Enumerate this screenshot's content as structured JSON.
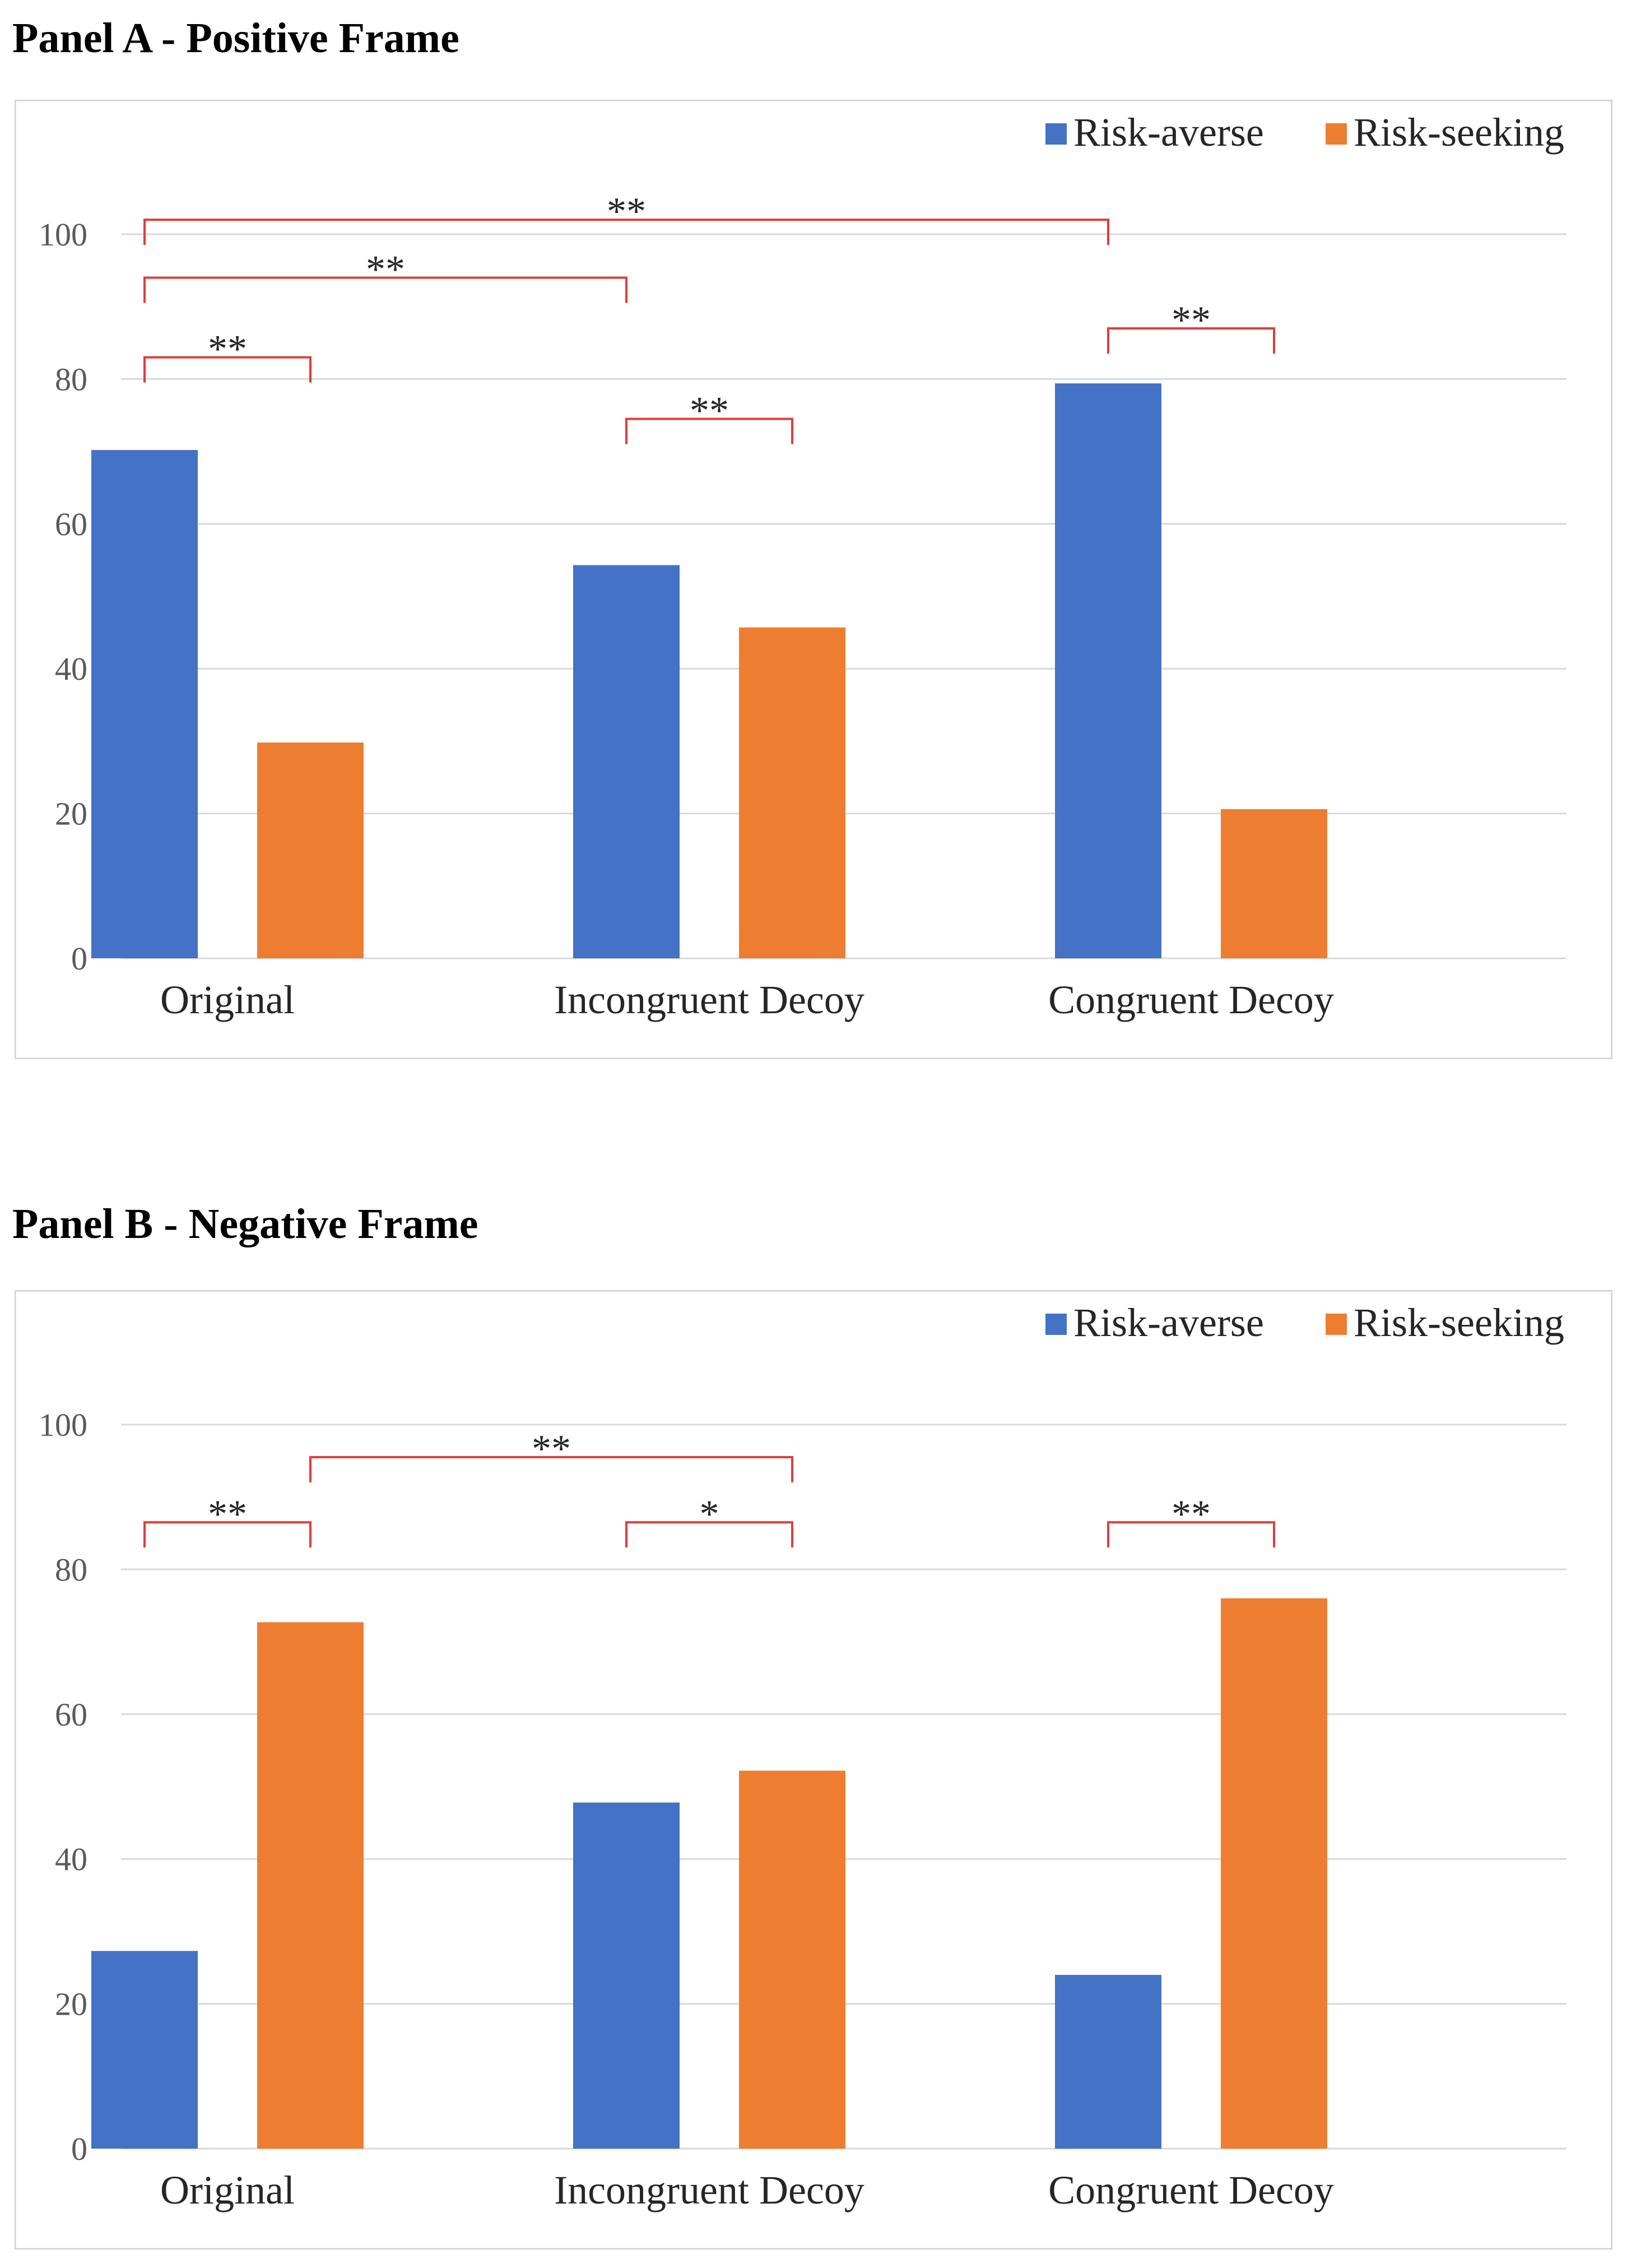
{
  "panels": [
    {
      "title": "Panel A - Positive Frame"
    },
    {
      "title": "Panel B - Negative Frame"
    }
  ],
  "colors": {
    "risk_averse": "#4472C4",
    "risk_seeking": "#ED7D31",
    "significance": "#E03C3C",
    "gridline": "#D9D9D9",
    "frame": "#D0D0D0",
    "text": "#262626"
  },
  "chart_data": [
    {
      "type": "bar",
      "categories": [
        "Original",
        "Incongruent Decoy",
        "Congruent Decoy"
      ],
      "series": [
        {
          "name": "Risk-averse",
          "values": [
            70.2,
            54.3,
            79.4
          ]
        },
        {
          "name": "Risk-seeking",
          "values": [
            29.8,
            45.7,
            20.6
          ]
        }
      ],
      "ylim": [
        0,
        100
      ],
      "yticks": [
        0,
        20,
        40,
        60,
        80,
        100
      ],
      "grid": true,
      "legend": "top-right",
      "significance": [
        {
          "from": [
            0,
            0
          ],
          "to": [
            0,
            1
          ],
          "level": 83,
          "label": "**"
        },
        {
          "from": [
            0,
            0
          ],
          "to": [
            1,
            0
          ],
          "level": 94,
          "label": "**"
        },
        {
          "from": [
            0,
            0
          ],
          "to": [
            2,
            0
          ],
          "level": 102,
          "label": "**"
        },
        {
          "from": [
            1,
            0
          ],
          "to": [
            1,
            1
          ],
          "level": 74.5,
          "label": "**"
        },
        {
          "from": [
            2,
            0
          ],
          "to": [
            2,
            1
          ],
          "level": 87,
          "label": "**"
        }
      ]
    },
    {
      "type": "bar",
      "categories": [
        "Original",
        "Incongruent Decoy",
        "Congruent Decoy"
      ],
      "series": [
        {
          "name": "Risk-averse",
          "values": [
            27.3,
            47.8,
            24.0
          ]
        },
        {
          "name": "Risk-seeking",
          "values": [
            72.7,
            52.2,
            76.0
          ]
        }
      ],
      "ylim": [
        0,
        100
      ],
      "yticks": [
        0,
        20,
        40,
        60,
        80,
        100
      ],
      "grid": true,
      "legend": "top-right",
      "significance": [
        {
          "from": [
            0,
            0
          ],
          "to": [
            0,
            1
          ],
          "level": 86.5,
          "label": "**"
        },
        {
          "from": [
            0,
            1
          ],
          "to": [
            1,
            1
          ],
          "level": 95.5,
          "label": "**"
        },
        {
          "from": [
            1,
            0
          ],
          "to": [
            1,
            1
          ],
          "level": 86.5,
          "label": "*"
        },
        {
          "from": [
            2,
            0
          ],
          "to": [
            2,
            1
          ],
          "level": 86.5,
          "label": "**"
        }
      ]
    }
  ]
}
